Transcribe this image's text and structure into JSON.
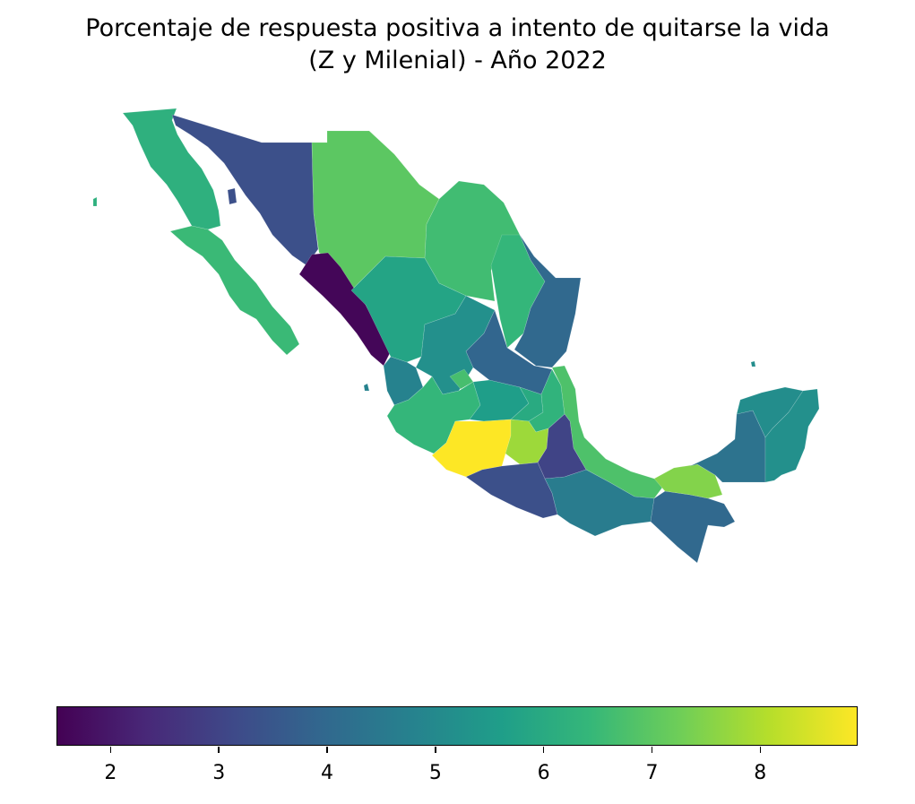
{
  "title": {
    "line1": "Porcentaje de respuesta positiva a intento de quitarse la vida",
    "line2": "(Z y Milenial) - Año 2022"
  },
  "colormap": "viridis",
  "colors": {
    "viridis_stops": [
      "#440154",
      "#482878",
      "#3e4a89",
      "#31688e",
      "#26828e",
      "#1f9e89",
      "#35b779",
      "#6ece58",
      "#b5de2b",
      "#fde725"
    ]
  },
  "colorbar": {
    "min": 1.5,
    "max": 8.9,
    "orientation": "horizontal",
    "ticks": [
      "2",
      "3",
      "4",
      "5",
      "6",
      "7",
      "8"
    ]
  },
  "regions": [
    {
      "id": "baja-california",
      "value": 6.2
    },
    {
      "id": "baja-california-sur",
      "value": 6.5
    },
    {
      "id": "sonora",
      "value": 3.3
    },
    {
      "id": "chihuahua",
      "value": 7.0
    },
    {
      "id": "coahuila",
      "value": 6.6
    },
    {
      "id": "nuevo-leon",
      "value": 6.4
    },
    {
      "id": "tamaulipas",
      "value": 4.0
    },
    {
      "id": "sinaloa",
      "value": 1.6
    },
    {
      "id": "durango",
      "value": 5.8
    },
    {
      "id": "zacatecas",
      "value": 5.2
    },
    {
      "id": "san-luis-potosi",
      "value": 3.9
    },
    {
      "id": "nayarit",
      "value": 4.8
    },
    {
      "id": "aguascalientes",
      "value": 6.7
    },
    {
      "id": "jalisco",
      "value": 6.4
    },
    {
      "id": "guanajuato",
      "value": 5.6
    },
    {
      "id": "queretaro",
      "value": 6.0
    },
    {
      "id": "hidalgo",
      "value": 6.3
    },
    {
      "id": "veracruz",
      "value": 6.8
    },
    {
      "id": "michoacan",
      "value": 8.9
    },
    {
      "id": "mexico",
      "value": 7.8
    },
    {
      "id": "puebla",
      "value": 3.0
    },
    {
      "id": "guerrero",
      "value": 3.3
    },
    {
      "id": "oaxaca",
      "value": 4.6
    },
    {
      "id": "chiapas",
      "value": 4.0
    },
    {
      "id": "tabasco",
      "value": 7.5
    },
    {
      "id": "campeche",
      "value": 4.3
    },
    {
      "id": "yucatan",
      "value": 5.1
    },
    {
      "id": "quintana-roo",
      "value": 5.2
    }
  ]
}
